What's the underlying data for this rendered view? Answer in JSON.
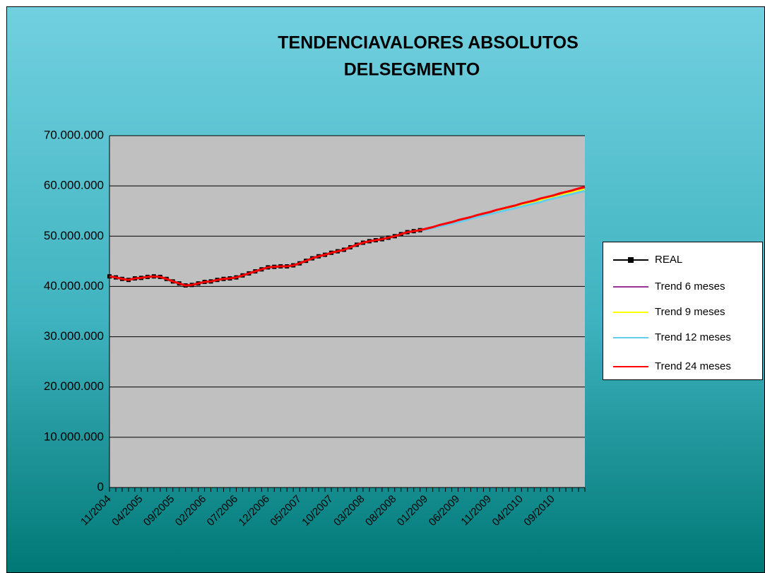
{
  "chart_data": {
    "type": "line",
    "title": [
      "TENDENCIAVALORES ABSOLUTOS",
      "DELSEGMENTO"
    ],
    "categories": [
      "11/2004",
      null,
      null,
      null,
      null,
      "04/2005",
      null,
      null,
      null,
      null,
      "09/2005",
      null,
      null,
      null,
      null,
      "02/2006",
      null,
      null,
      null,
      null,
      "07/2006",
      null,
      null,
      null,
      null,
      "12/2006",
      null,
      null,
      null,
      null,
      "05/2007",
      null,
      null,
      null,
      null,
      "10/2007",
      null,
      null,
      null,
      null,
      "03/2008",
      null,
      null,
      null,
      null,
      "08/2008",
      null,
      null,
      null,
      null,
      "01/2009",
      null,
      null,
      null,
      null,
      "06/2009",
      null,
      null,
      null,
      null,
      "11/2009",
      null,
      null,
      null,
      null,
      "04/2010",
      null,
      null,
      null,
      null,
      "09/2010",
      null,
      null,
      null,
      null,
      null
    ],
    "ylim": [
      0,
      70000000
    ],
    "yticks": [
      0,
      {
        "value": 10000000,
        "label": "10.000.000"
      },
      {
        "value": 20000000,
        "label": "20.000.000"
      },
      {
        "value": 30000000,
        "label": "30.000.000"
      },
      {
        "value": 40000000,
        "label": "40.000.000"
      },
      {
        "value": 50000000,
        "label": "50.000.000"
      },
      {
        "value": 60000000,
        "label": "60.000.000"
      },
      {
        "value": 70000000,
        "label": "70.000.000"
      }
    ],
    "grid": true,
    "legend": "right",
    "series": [
      {
        "name": "REAL",
        "color": "#000000",
        "values": [
          42000000,
          41800000,
          41500000,
          41300000,
          41600000,
          41700000,
          41900000,
          42000000,
          41900000,
          41500000,
          41000000,
          40600000,
          40200000,
          40300000,
          40600000,
          40900000,
          41000000,
          41300000,
          41500000,
          41600000,
          41800000,
          42200000,
          42600000,
          43000000,
          43400000,
          43800000,
          43900000,
          44000000,
          44000000,
          44200000,
          44600000,
          45100000,
          45600000,
          46000000,
          46300000,
          46700000,
          47000000,
          47300000,
          47800000,
          48300000,
          48700000,
          49000000,
          49200000,
          49400000,
          49700000,
          50000000,
          50400000,
          50800000,
          51000000,
          51200000,
          null,
          null,
          null,
          null,
          null,
          null,
          null,
          null,
          null,
          null,
          null,
          null,
          null,
          null,
          null,
          null,
          null,
          null,
          null,
          null,
          null,
          null,
          null,
          null,
          null,
          null
        ]
      },
      {
        "name": "Trend 6 meses",
        "color": "#993399",
        "values": [
          null,
          null,
          null,
          null,
          null,
          null,
          null,
          null,
          null,
          null,
          null,
          null,
          null,
          null,
          null,
          null,
          null,
          null,
          null,
          null,
          null,
          null,
          null,
          null,
          null,
          null,
          null,
          null,
          null,
          null,
          null,
          null,
          null,
          null,
          null,
          null,
          null,
          null,
          null,
          null,
          null,
          null,
          null,
          null,
          null,
          null,
          null,
          null,
          51000000,
          51200000,
          51500000,
          51800000,
          52100000,
          52500000,
          52800000,
          53100000,
          53400000,
          53700000,
          54100000,
          54400000,
          54700000,
          55000000,
          55300000,
          55700000,
          56000000,
          56300000,
          56600000,
          56900000,
          57300000,
          57600000,
          57900000,
          58200000,
          58500000,
          58900000,
          59200000,
          59500000
        ]
      },
      {
        "name": "Trend 9 meses",
        "color": "#ffff00",
        "values": [
          null,
          null,
          null,
          null,
          null,
          null,
          null,
          null,
          null,
          null,
          null,
          null,
          null,
          null,
          null,
          null,
          null,
          null,
          null,
          null,
          null,
          null,
          null,
          null,
          null,
          null,
          null,
          null,
          null,
          null,
          null,
          null,
          null,
          null,
          null,
          null,
          null,
          null,
          null,
          null,
          null,
          null,
          null,
          null,
          null,
          null,
          null,
          null,
          51000000,
          51200000,
          51400000,
          51700000,
          52000000,
          52300000,
          52700000,
          53000000,
          53300000,
          53600000,
          53900000,
          54200000,
          54600000,
          54900000,
          55200000,
          55500000,
          55800000,
          56100000,
          56500000,
          56800000,
          57100000,
          57400000,
          57700000,
          58000000,
          58400000,
          58700000,
          59000000,
          59300000
        ]
      },
      {
        "name": "Trend 12 meses",
        "color": "#66ccee",
        "values": [
          null,
          null,
          null,
          null,
          null,
          null,
          null,
          null,
          null,
          null,
          null,
          null,
          null,
          null,
          null,
          null,
          null,
          null,
          null,
          null,
          null,
          null,
          null,
          null,
          null,
          null,
          null,
          null,
          null,
          null,
          null,
          null,
          null,
          null,
          null,
          null,
          null,
          null,
          null,
          null,
          null,
          null,
          null,
          null,
          null,
          null,
          null,
          null,
          51000000,
          51200000,
          51300000,
          51600000,
          51900000,
          52200000,
          52500000,
          52800000,
          53100000,
          53500000,
          53800000,
          54100000,
          54400000,
          54700000,
          55000000,
          55300000,
          55600000,
          55900000,
          56200000,
          56500000,
          56800000,
          57200000,
          57500000,
          57800000,
          58100000,
          58400000,
          58700000,
          59000000
        ]
      },
      {
        "name": "Trend 24 meses",
        "color": "#ff0000",
        "values": [
          42000000,
          41800000,
          41500000,
          41300000,
          41600000,
          41700000,
          41900000,
          42000000,
          41900000,
          41500000,
          41000000,
          40600000,
          40200000,
          40300000,
          40600000,
          40900000,
          41000000,
          41300000,
          41500000,
          41600000,
          41800000,
          42200000,
          42600000,
          43000000,
          43400000,
          43800000,
          43900000,
          44000000,
          44000000,
          44200000,
          44600000,
          45100000,
          45600000,
          46000000,
          46300000,
          46700000,
          47000000,
          47300000,
          47800000,
          48300000,
          48700000,
          49000000,
          49200000,
          49400000,
          49700000,
          50000000,
          50400000,
          50800000,
          51000000,
          51200000,
          51500000,
          51800000,
          52200000,
          52500000,
          52800000,
          53200000,
          53500000,
          53800000,
          54200000,
          54500000,
          54800000,
          55200000,
          55500000,
          55800000,
          56100000,
          56500000,
          56800000,
          57100000,
          57500000,
          57800000,
          58100000,
          58500000,
          58800000,
          59100000,
          59500000,
          59800000
        ]
      }
    ]
  }
}
